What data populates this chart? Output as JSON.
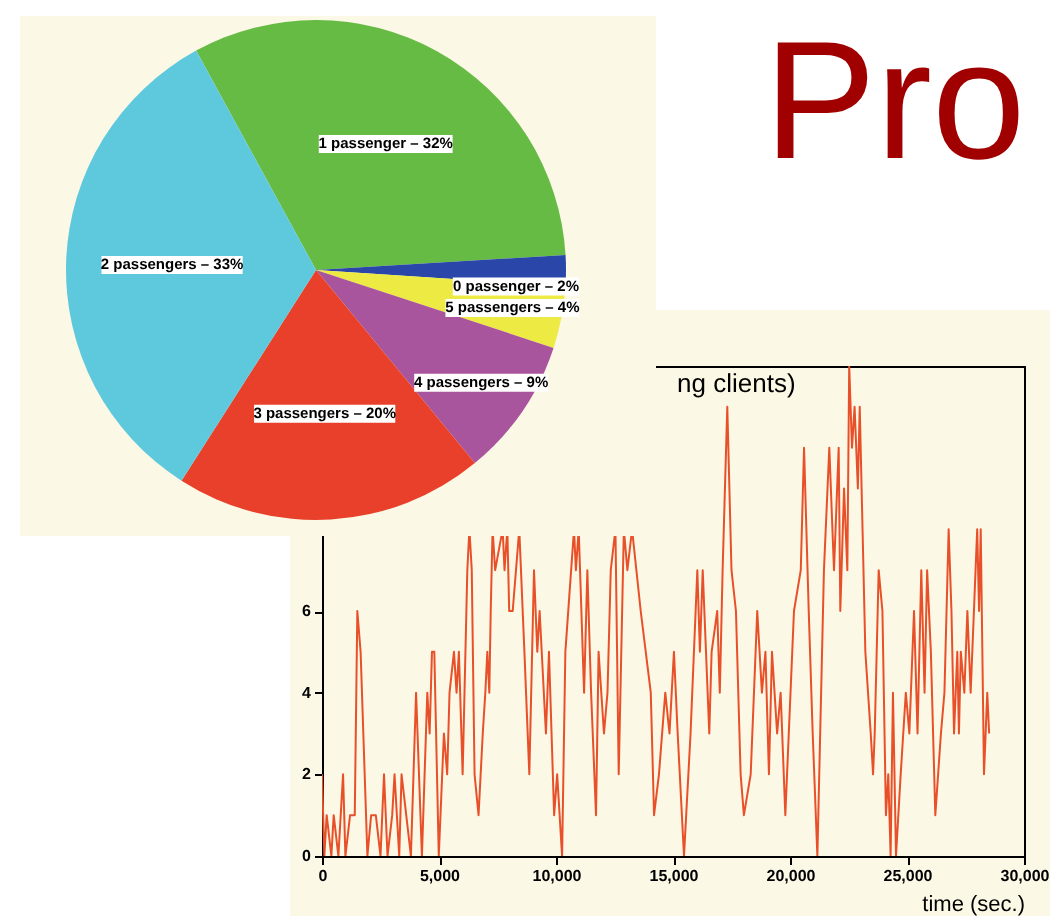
{
  "chart_data": [
    {
      "type": "pie",
      "annotations": [
        "Pro"
      ],
      "categories": [
        "1 passenger – 32%",
        "0 passenger – 2%",
        "5 passengers – 4%",
        "4 passengers – 9%",
        "3 passengers – 20%",
        "2 passengers – 33%"
      ],
      "values": [
        32,
        2,
        4,
        9,
        20,
        33
      ],
      "colors": [
        "#66bb44",
        "#2a46a8",
        "#eeea44",
        "#a8559e",
        "#e8402a",
        "#5ec8dc"
      ]
    },
    {
      "type": "line",
      "title": "ng clients)",
      "xlabel": "time (sec.)",
      "xlim": [
        0,
        30000
      ],
      "xticks": [
        0,
        {
          "value": 5000,
          "label": "5,000"
        },
        {
          "value": 10000,
          "label": "10,000"
        },
        {
          "value": 15000,
          "label": "15,000"
        },
        {
          "value": 20000,
          "label": "20,000"
        },
        {
          "value": 25000,
          "label": "25,000"
        },
        {
          "value": 30000,
          "label": "30,000"
        }
      ],
      "ylim": [
        0,
        12
      ],
      "yticks": [
        0,
        2,
        4,
        6
      ],
      "grid": false,
      "series": [
        {
          "color": "#e8502a",
          "x": [
            0,
            100,
            200,
            400,
            500,
            700,
            900,
            1000,
            1200,
            1400,
            1510,
            1650,
            1940,
            2100,
            2300,
            2500,
            2650,
            2800,
            3000,
            3100,
            3300,
            3400,
            3600,
            3800,
            4020,
            4270,
            4500,
            4600,
            4700,
            4800,
            4990,
            5210,
            5350,
            5450,
            5640,
            5750,
            5850,
            6010,
            6210,
            6300,
            6400,
            6520,
            6690,
            6870,
            6980,
            7065,
            7150,
            7210,
            7290,
            7400,
            7720,
            7800,
            7920,
            8000,
            8150,
            8430,
            8650,
            8860,
            9060,
            9200,
            9300,
            9570,
            9700,
            9920,
            10050,
            10260,
            10400,
            10770,
            10850,
            10970,
            11200,
            11340,
            11500,
            11710,
            11820,
            12050,
            12200,
            12340,
            12540,
            12680,
            12900,
            13050,
            13250,
            13620,
            14050,
            14190,
            14400,
            14670,
            14850,
            15040,
            15200,
            15470,
            15750,
            16040,
            16150,
            16270,
            16550,
            16650,
            16890,
            17000,
            17120,
            17320,
            17500,
            17690,
            17890,
            18030,
            18320,
            18600,
            18800,
            18950,
            19100,
            19230,
            19450,
            19600,
            19800,
            20170,
            20460,
            20600,
            20800,
            20970,
            21170,
            21450,
            21680,
            21880,
            22080,
            22150,
            22310,
            22450,
            22530,
            22650,
            22760,
            22900,
            22980,
            23100,
            23220,
            23450,
            23550,
            23620,
            23790,
            23950,
            24100,
            24200,
            24300,
            24400,
            24530,
            24730,
            24950,
            25100,
            25300,
            25450,
            25610,
            25750,
            25860,
            26020,
            26210,
            26450,
            26600,
            26780,
            26900,
            27010,
            27150,
            27220,
            27300,
            27450,
            27580,
            27720,
            27860,
            28000,
            28080,
            28150,
            28290,
            28430,
            28510
          ],
          "values": [
            2,
            0,
            1,
            0,
            1,
            0,
            2,
            0,
            1,
            1,
            6,
            5,
            0,
            1,
            1,
            0,
            2,
            0,
            1,
            2,
            0,
            2,
            1,
            0,
            4,
            0,
            4,
            3,
            5,
            5,
            0,
            3,
            2,
            4,
            5,
            4,
            5,
            2,
            7,
            8,
            7,
            2,
            1,
            3,
            4,
            5,
            4,
            6,
            8,
            7,
            8,
            7,
            8,
            6,
            6,
            8,
            5,
            2,
            7,
            5,
            6,
            3,
            5,
            1,
            2,
            0,
            5,
            8,
            7,
            8,
            4,
            7,
            4,
            1,
            5,
            3,
            4,
            7,
            8,
            2,
            8,
            7,
            8,
            6,
            4,
            1,
            2,
            4,
            3,
            5,
            3,
            0,
            3,
            7,
            5,
            7,
            3,
            5,
            6,
            4,
            7,
            11,
            7,
            6,
            2,
            1,
            2,
            6,
            4,
            5,
            2,
            5,
            3,
            4,
            1,
            6,
            7,
            10,
            6,
            3,
            0,
            7,
            10,
            7,
            10,
            6,
            9,
            7,
            12,
            10,
            11,
            9,
            11,
            8,
            5,
            3,
            2,
            3,
            7,
            6,
            1,
            2,
            0,
            4,
            0,
            2,
            4,
            3,
            6,
            3,
            7,
            4,
            7,
            5,
            1,
            3,
            4,
            8,
            6,
            3,
            5,
            3,
            5,
            4,
            6,
            4,
            6,
            8,
            6,
            8,
            2,
            4,
            3
          ]
        }
      ]
    }
  ]
}
